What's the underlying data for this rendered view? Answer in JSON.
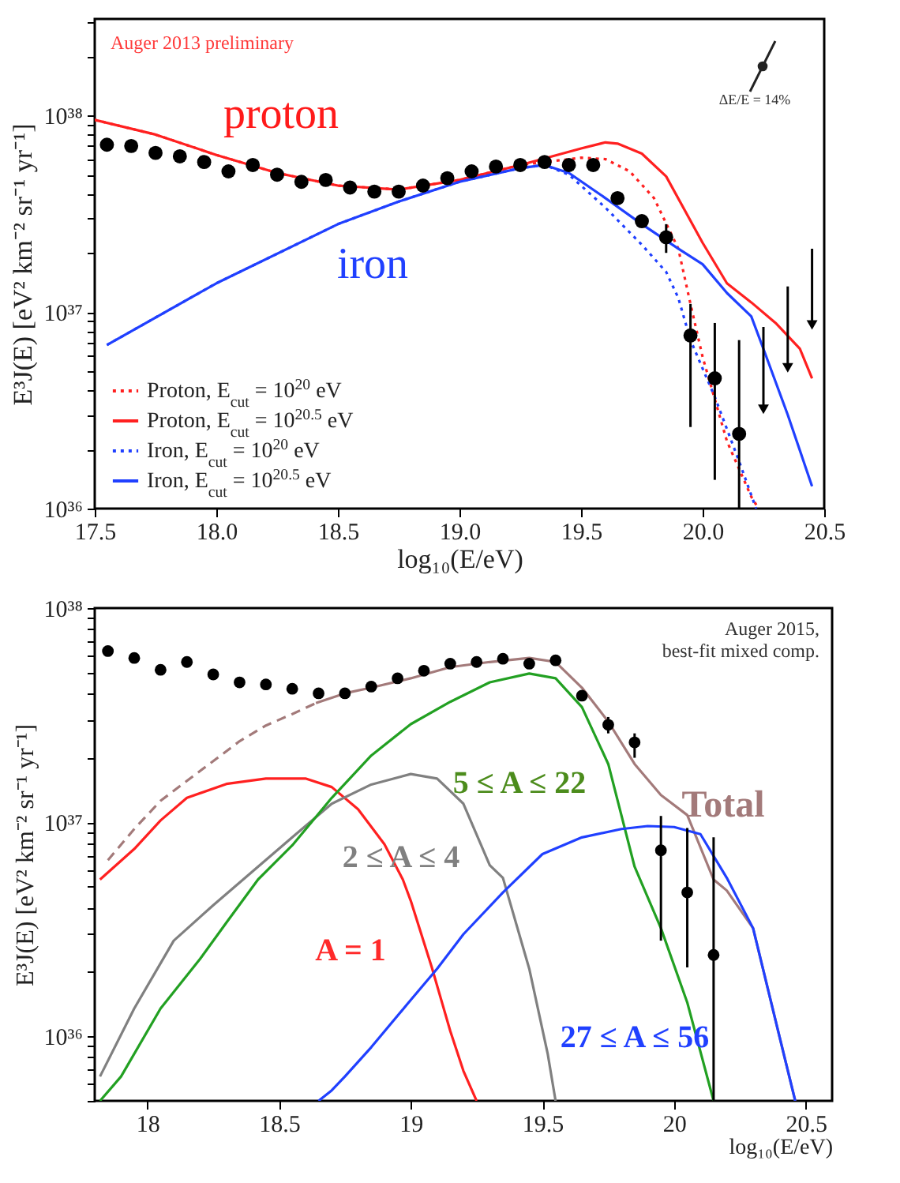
{
  "chart_data": [
    {
      "type": "line",
      "xlabel": "log₁₀(E/eV)",
      "ylabel": "E³J(E) [eV² km⁻² sr⁻¹ yr⁻¹]",
      "log": true,
      "legend": "bottom left",
      "xlim": [
        17.5,
        20.5
      ],
      "xticks": [
        17.5,
        {
          "value": 18,
          "label": "18.0"
        },
        18.5,
        {
          "value": 19,
          "label": "19.0"
        },
        19.5,
        {
          "value": 20,
          "label": "20.0"
        },
        20.5
      ],
      "ylim": [
        1e+36,
        3.1e+38
      ],
      "yticks": [
        {
          "value": 1e+36,
          "label": "10³⁶"
        },
        {
          "value": 2e+36,
          "label": null
        },
        {
          "value": 3e+36,
          "label": null
        },
        {
          "value": 4e+36,
          "label": null
        },
        {
          "value": 5e+36,
          "label": null
        },
        {
          "value": 6e+36,
          "label": null
        },
        {
          "value": 7e+36,
          "label": null
        },
        {
          "value": 8e+36,
          "label": null
        },
        {
          "value": 9e+36,
          "label": null
        },
        {
          "value": 1e+37,
          "label": "10³⁷"
        },
        {
          "value": 2e+37,
          "label": null
        },
        {
          "value": 3e+37,
          "label": null
        },
        {
          "value": 4e+37,
          "label": null
        },
        {
          "value": 5e+37,
          "label": null
        },
        {
          "value": 6e+37,
          "label": null
        },
        {
          "value": 7e+37,
          "label": null
        },
        {
          "value": 8e+37,
          "label": null
        },
        {
          "value": 9e+37,
          "label": null
        },
        {
          "value": 1e+38,
          "label": "10³⁸"
        },
        {
          "value": 2e+38,
          "label": null
        },
        {
          "value": 3e+38,
          "label": null
        }
      ],
      "annotations": [
        "Auger 2013 preliminary",
        "proton",
        "iron",
        "ΔE/E = 14%"
      ],
      "series": [
        {
          "name": "Proton, E$_{cut}$ = 10$^{20}$ eV",
          "color": "#ff2020",
          "line_style": "dotted",
          "x": [
            17.5,
            17.75,
            18.0,
            18.25,
            18.5,
            18.75,
            19.0,
            19.25,
            19.5,
            19.6,
            19.7,
            19.8,
            19.9,
            19.95,
            20.0,
            20.1,
            20.2,
            20.23
          ],
          "values": [
            9.5e+37,
            8e+37,
            6.3e+37,
            5.1e+37,
            4.4e+37,
            4.2e+37,
            4.7e+37,
            5.6e+37,
            6.1e+37,
            6e+37,
            5.2e+37,
            3.8e+37,
            2.1e+37,
            1.1e+37,
            5.9e+36,
            2.2e+36,
            1.15e+36,
            1e+36
          ]
        },
        {
          "name": "Proton, E$_{cut}$ = 10$^{20.5}$ eV",
          "color": "#ff2020",
          "line_style": "solid",
          "x": [
            17.5,
            17.75,
            18.0,
            18.25,
            18.5,
            18.75,
            19.0,
            19.25,
            19.5,
            19.6,
            19.65,
            19.75,
            19.85,
            20.0,
            20.1,
            20.2,
            20.3,
            20.4,
            20.45
          ],
          "values": [
            9.5e+37,
            8e+37,
            6.3e+37,
            5.1e+37,
            4.4e+37,
            4.2e+37,
            4.7e+37,
            5.6e+37,
            6.8e+37,
            7.3e+37,
            7.2e+37,
            6.4e+37,
            4.9e+37,
            2.25e+37,
            1.4e+37,
            1.12e+37,
            8.8e+36,
            6.5e+36,
            4.6e+36
          ]
        },
        {
          "name": "Iron, E$_{cut}$ = 10$^{20}$ eV",
          "color": "#2040ff",
          "line_style": "dotted",
          "x": [
            17.55,
            18.0,
            18.5,
            18.75,
            19.0,
            19.25,
            19.35,
            19.45,
            19.6,
            19.75,
            19.85,
            19.9,
            19.95,
            20.05,
            20.15,
            20.22
          ],
          "values": [
            6.8e+36,
            1.4e+37,
            2.8e+37,
            3.65e+37,
            4.6e+37,
            5.4e+37,
            5.6e+37,
            5e+37,
            3.4e+37,
            2.2e+37,
            1.6e+37,
            1.18e+37,
            7.2e+36,
            3.7e+36,
            1.74e+36,
            1e+36
          ]
        },
        {
          "name": "Iron, E$_{cut}$ = 10$^{20.5}$ eV",
          "color": "#2040ff",
          "line_style": "solid",
          "x": [
            17.55,
            18.0,
            18.5,
            18.75,
            19.0,
            19.25,
            19.35,
            19.45,
            19.6,
            19.75,
            19.9,
            20.0,
            20.1,
            20.2,
            20.25,
            20.35,
            20.45
          ],
          "values": [
            6.8e+36,
            1.4e+37,
            2.8e+37,
            3.65e+37,
            4.6e+37,
            5.4e+37,
            5.6e+37,
            5.1e+37,
            3.8e+37,
            2.8e+37,
            2.1e+37,
            1.75e+37,
            1.25e+37,
            9.5e+36,
            6.5e+36,
            3e+36,
            1.3e+36
          ]
        },
        {
          "type": "scatter",
          "marker": "circle",
          "color": "#000000",
          "x": [
            17.55,
            17.65,
            17.75,
            17.85,
            17.95,
            18.05,
            18.15,
            18.25,
            18.35,
            18.45,
            18.55,
            18.65,
            18.75,
            18.85,
            18.95,
            19.05,
            19.15,
            19.25,
            19.35,
            19.45,
            19.55,
            19.65,
            19.75,
            19.85,
            19.95,
            20.05,
            20.15
          ],
          "values": [
            7.1e+37,
            7e+37,
            6.45e+37,
            6.2e+37,
            5.8e+37,
            5.2e+37,
            5.6e+37,
            5e+37,
            4.6e+37,
            4.7e+37,
            4.3e+37,
            4.1e+37,
            4.1e+37,
            4.4e+37,
            4.8e+37,
            5.2e+37,
            5.5e+37,
            5.6e+37,
            5.8e+37,
            5.6e+37,
            5.6e+37,
            3.8e+37,
            2.9e+37,
            2.4e+37,
            7.6e+36,
            4.6e+36,
            2.4e+36
          ],
          "errors": [
            null,
            null,
            null,
            null,
            null,
            null,
            null,
            null,
            null,
            null,
            null,
            null,
            null,
            null,
            null,
            null,
            null,
            null,
            null,
            null,
            null,
            null,
            [
              2.7e+37,
              3.1e+37
            ],
            [
              2e+37,
              2.8e+37
            ],
            [
              2.6e+36,
              1.1e+37
            ],
            [
              1.4e+36,
              8.8e+36
            ],
            [
              1e+36,
              7.2e+36
            ]
          ]
        },
        {
          "type": "scatter",
          "marker": "triangle",
          "color": "#000000",
          "x": [
            20.25,
            20.35,
            20.45
          ],
          "values": [
            3.2e+36,
            5.2e+36,
            8.6e+36
          ],
          "errors": [
            [
              3.2e+36,
              8.4e+36
            ],
            [
              5.2e+36,
              1.35e+37
            ],
            [
              8.6e+36,
              2.1e+37
            ]
          ]
        }
      ]
    },
    {
      "type": "line",
      "xlabel": "log₁₀(E/eV)",
      "ylabel": "E³J(E) [eV² km⁻² sr⁻¹ yr⁻¹]",
      "log": true,
      "xlim": [
        17.8,
        20.6
      ],
      "xticks": [
        18,
        18.5,
        19,
        19.5,
        20,
        20.5
      ],
      "ylim": [
        5e+35,
        1e+38
      ],
      "yticks": [
        {
          "value": 5e+35,
          "label": null
        },
        {
          "value": 6e+35,
          "label": null
        },
        {
          "value": 7e+35,
          "label": null
        },
        {
          "value": 8e+35,
          "label": null
        },
        {
          "value": 9e+35,
          "label": null
        },
        {
          "value": 1e+36,
          "label": "10³⁶"
        },
        {
          "value": 2e+36,
          "label": null
        },
        {
          "value": 3e+36,
          "label": null
        },
        {
          "value": 4e+36,
          "label": null
        },
        {
          "value": 5e+36,
          "label": null
        },
        {
          "value": 6e+36,
          "label": null
        },
        {
          "value": 7e+36,
          "label": null
        },
        {
          "value": 8e+36,
          "label": null
        },
        {
          "value": 9e+36,
          "label": null
        },
        {
          "value": 1e+37,
          "label": "10³⁷"
        },
        {
          "value": 2e+37,
          "label": null
        },
        {
          "value": 3e+37,
          "label": null
        },
        {
          "value": 4e+37,
          "label": null
        },
        {
          "value": 5e+37,
          "label": null
        },
        {
          "value": 6e+37,
          "label": null
        },
        {
          "value": 7e+37,
          "label": null
        },
        {
          "value": 8e+37,
          "label": null
        },
        {
          "value": 9e+37,
          "label": null
        },
        {
          "value": 1e+38,
          "label": "10³⁸"
        }
      ],
      "annotations": [
        "Auger 2015,\nbest-fit mixed comp.",
        "A = 1",
        "2 ≤ A ≤ 4",
        "5 ≤ A ≤ 22",
        "Total",
        "27 ≤ A ≤ 56"
      ],
      "series": [
        {
          "color": "#a37a7a",
          "line_style": "dashed",
          "x": [
            17.85,
            17.95,
            18.05,
            18.15,
            18.25,
            18.35,
            18.45,
            18.55,
            18.64
          ],
          "values": [
            6.65e+36,
            9.3e+36,
            1.26e+37,
            1.56e+37,
            1.93e+37,
            2.39e+37,
            2.83e+37,
            3.2e+37,
            3.6e+37
          ]
        },
        {
          "color": "#a37a7a",
          "line_style": "solid",
          "x": [
            18.64,
            18.75,
            18.85,
            19.0,
            19.15,
            19.3,
            19.45,
            19.55,
            19.65,
            19.75,
            19.85,
            19.95,
            20.05,
            20.15,
            20.2,
            20.3,
            20.4,
            20.46
          ],
          "values": [
            3.6e+37,
            4e+37,
            4.25e+37,
            4.7e+37,
            5.3e+37,
            5.6e+37,
            5.85e+37,
            5.6e+37,
            4.25e+37,
            2.95e+37,
            1.87e+37,
            1.34e+37,
            1.08e+37,
            5.4e+36,
            4.8e+36,
            3.2e+36,
            1e+36,
            5e+35
          ]
        },
        {
          "color": "#ff2020",
          "x": [
            17.82,
            17.95,
            18.05,
            18.15,
            18.3,
            18.45,
            18.6,
            18.7,
            18.8,
            18.9,
            18.97,
            19.0,
            19.08,
            19.15,
            19.2,
            19.25
          ],
          "values": [
            5.4e+36,
            7.5e+36,
            1.02e+37,
            1.3e+37,
            1.51e+37,
            1.6e+37,
            1.6e+37,
            1.46e+37,
            1.15e+37,
            7.9e+36,
            5.4e+36,
            4.3e+36,
            2.1e+36,
            1.06e+36,
            6.9e+35,
            5e+35
          ]
        },
        {
          "color": "#808080",
          "x": [
            17.82,
            17.95,
            18.1,
            18.25,
            18.4,
            18.55,
            18.7,
            18.85,
            19.0,
            19.1,
            19.2,
            19.3,
            19.35,
            19.45,
            19.52,
            19.55
          ],
          "values": [
            6.5e+35,
            1.35e+36,
            2.8e+36,
            4.1e+36,
            5.9e+36,
            8.5e+36,
            1.22e+37,
            1.5e+37,
            1.68e+37,
            1.6e+37,
            1.22e+37,
            6.3e+36,
            5.5e+36,
            2.07e+36,
            8.3e+35,
            5e+35
          ]
        },
        {
          "color": "#22a022",
          "x": [
            17.82,
            17.9,
            18.05,
            18.2,
            18.3,
            18.42,
            18.55,
            18.7,
            18.85,
            19.0,
            19.15,
            19.3,
            19.45,
            19.55,
            19.65,
            19.75,
            19.85,
            19.95,
            20.05,
            20.15
          ],
          "values": [
            5e+35,
            6.5e+35,
            1.35e+36,
            2.3e+36,
            3.4e+36,
            5.4e+36,
            7.8e+36,
            1.3e+37,
            2.05e+37,
            2.87e+37,
            3.65e+37,
            4.5e+37,
            4.95e+37,
            4.7e+37,
            3.45e+37,
            1.87e+37,
            6.2e+36,
            3.2e+36,
            1.44e+36,
            5e+35
          ]
        },
        {
          "color": "#2040ff",
          "x": [
            18.65,
            18.7,
            18.75,
            18.85,
            19.0,
            19.1,
            19.2,
            19.35,
            19.5,
            19.65,
            19.8,
            19.9,
            20.0,
            20.1,
            20.2,
            20.3,
            20.4,
            20.46
          ],
          "values": [
            5e+35,
            5.6e+35,
            6.5e+35,
            8.9e+35,
            1.48e+36,
            2.07e+36,
            3e+36,
            4.7e+36,
            7.1e+36,
            8.5e+36,
            9.3e+36,
            9.6e+36,
            9.5e+36,
            8.8e+36,
            5.5e+36,
            3.2e+36,
            1e+36,
            5e+35
          ]
        },
        {
          "type": "scatter",
          "marker": "circle",
          "color": "#000000",
          "x": [
            17.85,
            17.95,
            18.05,
            18.15,
            18.25,
            18.35,
            18.45,
            18.55,
            18.65,
            18.75,
            18.85,
            18.95,
            19.05,
            19.15,
            19.25,
            19.35,
            19.45,
            19.55,
            19.65,
            19.75,
            19.85,
            19.95,
            20.05,
            20.15
          ],
          "values": [
            6.3e+37,
            5.85e+37,
            5.15e+37,
            5.6e+37,
            4.9e+37,
            4.5e+37,
            4.4e+37,
            4.2e+37,
            4e+37,
            4e+37,
            4.3e+37,
            4.7e+37,
            5.1e+37,
            5.5e+37,
            5.6e+37,
            5.8e+37,
            5.5e+37,
            5.7e+37,
            3.9e+37,
            2.85e+37,
            2.36e+37,
            7.4e+36,
            4.7e+36,
            2.4e+36
          ],
          "errors": [
            null,
            null,
            null,
            null,
            null,
            null,
            null,
            null,
            null,
            null,
            null,
            null,
            null,
            null,
            null,
            null,
            null,
            null,
            null,
            [
              2.6e+37,
              3.1e+37
            ],
            [
              2e+37,
              2.6e+37
            ],
            [
              2.8e+36,
              1.07e+37
            ],
            [
              2.1e+36,
              9.4e+36
            ],
            [
              5e+35,
              8.5e+36
            ]
          ]
        }
      ]
    }
  ]
}
